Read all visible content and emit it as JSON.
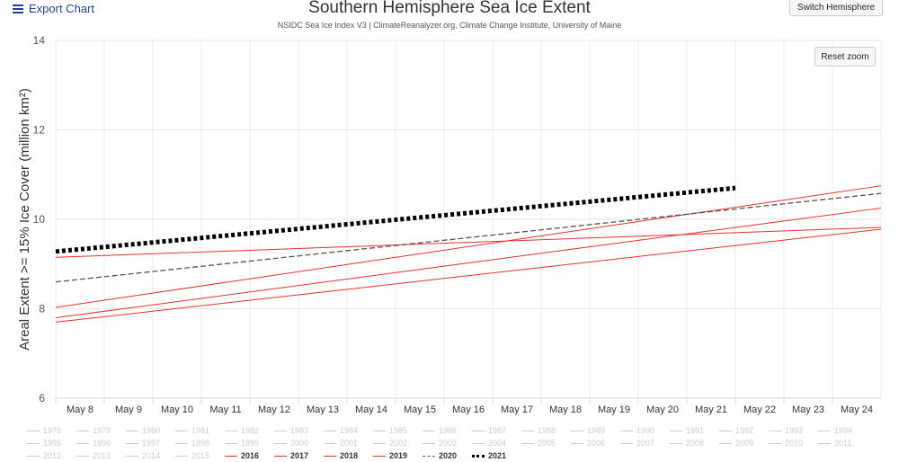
{
  "export_label": "Export Chart",
  "switch_label": "Switch Hemisphere",
  "reset_label": "Reset zoom",
  "colors": {
    "accent": "#23408e",
    "red": "#e8312f",
    "gray": "#555555",
    "black": "#000000",
    "muted": "#cccccc"
  },
  "chart_data": {
    "type": "line",
    "title": "Southern Hemisphere Sea Ice Extent",
    "subtitle": "NSIDC Sea Ice Index V3 | ClimateReanalyzer.org, Climate Change Institute, University of Maine",
    "ylabel": "Areal Extent >= 15% Ice Cover (million km²)",
    "xlabel": "",
    "ylim": [
      6,
      14
    ],
    "yticks": [
      6,
      8,
      10,
      12,
      14
    ],
    "categories": [
      "May 8",
      "May 9",
      "May 10",
      "May 11",
      "May 12",
      "May 13",
      "May 14",
      "May 15",
      "May 16",
      "May 17",
      "May 18",
      "May 19",
      "May 20",
      "May 21",
      "May 22",
      "May 23",
      "May 24"
    ],
    "x_start": 7.5,
    "x_end": 24.5,
    "series": [
      {
        "name": "2016",
        "style": "red",
        "x": [
          7.5,
          24.5
        ],
        "values": [
          7.7,
          9.78
        ]
      },
      {
        "name": "2017",
        "style": "red",
        "x": [
          7.5,
          24.5
        ],
        "values": [
          7.8,
          10.25
        ]
      },
      {
        "name": "2018",
        "style": "red",
        "x": [
          7.5,
          24.5
        ],
        "values": [
          8.03,
          10.75
        ]
      },
      {
        "name": "2019",
        "style": "red",
        "x": [
          7.5,
          24.5
        ],
        "values": [
          9.15,
          9.82
        ]
      },
      {
        "name": "2020",
        "style": "dash",
        "x": [
          7.5,
          24.5
        ],
        "values": [
          8.6,
          10.58
        ]
      },
      {
        "name": "2021",
        "style": "dot",
        "x": [
          7.5,
          21.5
        ],
        "values": [
          9.28,
          10.7
        ]
      }
    ]
  },
  "legend_rows": [
    [
      "1978",
      "1979",
      "1980",
      "1981",
      "1982",
      "1983",
      "1984",
      "1985",
      "1986",
      "1987",
      "1988",
      "1989",
      "1990",
      "1991",
      "1992",
      "1993",
      "1994"
    ],
    [
      "1995",
      "1996",
      "1997",
      "1998",
      "1999",
      "2000",
      "2001",
      "2002",
      "2003",
      "2004",
      "2005",
      "2006",
      "2007",
      "2008",
      "2009",
      "2010",
      "2011"
    ],
    [
      "2012",
      "2013",
      "2014",
      "2015",
      "2016",
      "2017",
      "2018",
      "2019",
      "2020",
      "2021"
    ]
  ],
  "legend_active": [
    "2016",
    "2017",
    "2018",
    "2019",
    "2020",
    "2021"
  ]
}
